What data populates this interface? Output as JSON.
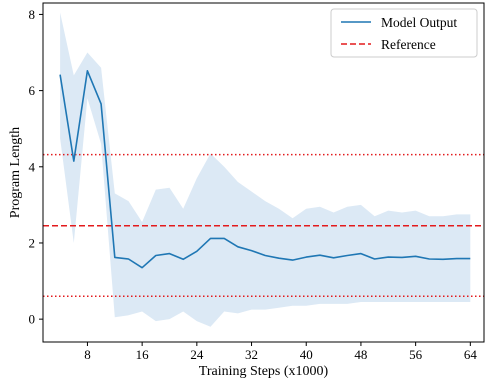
{
  "chart_data": {
    "type": "line",
    "xlabel": "Training Steps (x1000)",
    "ylabel": "Program Length",
    "xlim": [
      1.5,
      66
    ],
    "ylim": [
      -0.6,
      8.3
    ],
    "x_ticks": [
      8,
      16,
      24,
      32,
      40,
      48,
      56,
      64
    ],
    "y_ticks": [
      0,
      2,
      4,
      6,
      8
    ],
    "grid": false,
    "legend_placement": "top-right",
    "series": [
      {
        "name": "Model Output",
        "color": "#1f77b4",
        "x": [
          4,
          6,
          8,
          10,
          12,
          14,
          16,
          18,
          20,
          22,
          24,
          26,
          28,
          30,
          32,
          34,
          36,
          38,
          40,
          42,
          44,
          46,
          48,
          50,
          52,
          54,
          56,
          58,
          60,
          62,
          64
        ],
        "values": [
          6.42,
          4.15,
          6.52,
          5.65,
          1.62,
          1.58,
          1.35,
          1.67,
          1.72,
          1.57,
          1.78,
          2.12,
          2.12,
          1.9,
          1.8,
          1.67,
          1.6,
          1.55,
          1.63,
          1.68,
          1.61,
          1.67,
          1.72,
          1.58,
          1.63,
          1.62,
          1.65,
          1.58,
          1.57,
          1.59,
          1.59
        ],
        "band_upper": [
          8.05,
          6.4,
          7.0,
          6.6,
          3.3,
          3.1,
          2.55,
          3.4,
          3.45,
          2.9,
          3.7,
          4.35,
          4.0,
          3.6,
          3.35,
          3.1,
          2.9,
          2.65,
          2.9,
          2.95,
          2.8,
          2.95,
          3.0,
          2.7,
          2.85,
          2.8,
          2.85,
          2.7,
          2.7,
          2.75,
          2.75
        ],
        "band_lower": [
          4.75,
          2.0,
          5.8,
          4.6,
          0.05,
          0.1,
          0.2,
          -0.05,
          0.0,
          0.2,
          -0.05,
          -0.2,
          0.2,
          0.15,
          0.25,
          0.25,
          0.3,
          0.35,
          0.35,
          0.4,
          0.4,
          0.4,
          0.45,
          0.45,
          0.45,
          0.45,
          0.45,
          0.45,
          0.45,
          0.45,
          0.45
        ],
        "band_color": "#dce9f5"
      }
    ],
    "reference_lines": [
      {
        "name": "Reference",
        "y": 2.45,
        "style": "dashed",
        "color": "#e31a1c"
      },
      {
        "y": 4.32,
        "style": "dotted",
        "color": "#e31a1c"
      },
      {
        "y": 0.6,
        "style": "dotted",
        "color": "#e31a1c"
      }
    ]
  },
  "legend": {
    "items": [
      {
        "label": "Model Output",
        "color": "#1f77b4",
        "style": "solid"
      },
      {
        "label": "Reference",
        "color": "#e31a1c",
        "style": "dashed"
      }
    ]
  }
}
